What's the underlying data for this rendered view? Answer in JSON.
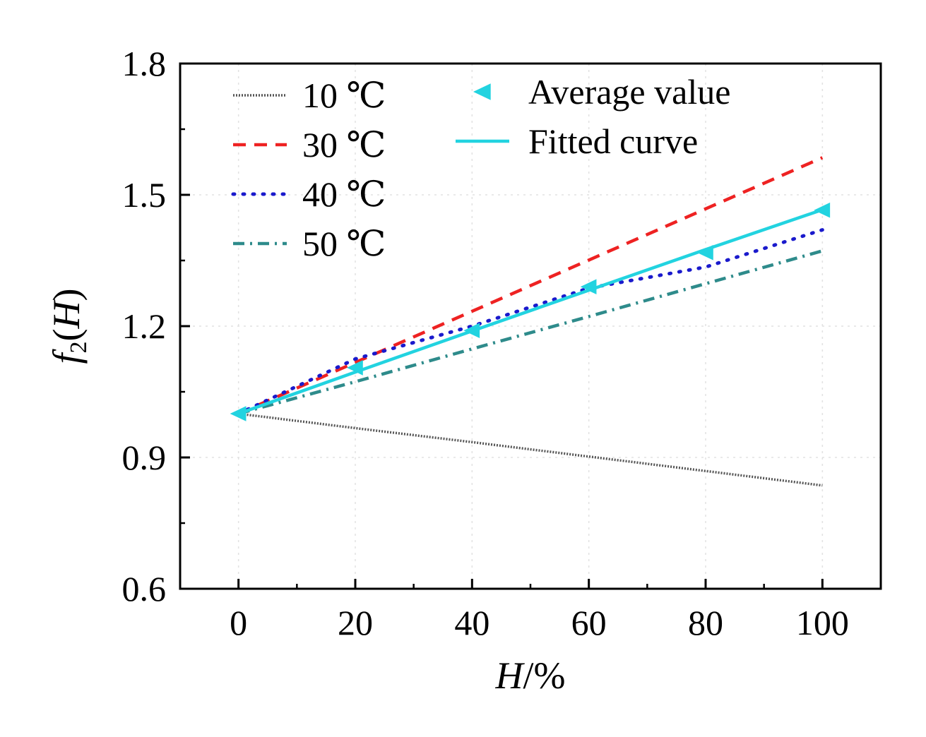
{
  "chart_data": {
    "type": "line",
    "title": "",
    "xlabel": "H/%",
    "ylabel": "f2(H)",
    "xlim": [
      -10,
      110
    ],
    "ylim": [
      0.6,
      1.8
    ],
    "xticks": [
      "0",
      "20",
      "40",
      "60",
      "80",
      "100"
    ],
    "yticks": [
      "0.6",
      "0.9",
      "1.2",
      "1.5",
      "1.8"
    ],
    "grid": true,
    "legend_placement": "top",
    "series": [
      {
        "name": "10 ℃",
        "style": "dotted-dense",
        "color": "#555555",
        "x": [
          0,
          20,
          40,
          60,
          80,
          100
        ],
        "values": [
          1.0,
          0.967,
          0.935,
          0.902,
          0.869,
          0.836
        ]
      },
      {
        "name": "30 ℃",
        "style": "dashed",
        "color": "#ee2222",
        "x": [
          0,
          20,
          40,
          60,
          80,
          100
        ],
        "values": [
          1.0,
          1.117,
          1.234,
          1.351,
          1.468,
          1.585
        ]
      },
      {
        "name": "40 ℃",
        "style": "dotted",
        "color": "#1a1acc",
        "x": [
          0,
          20,
          40,
          60,
          80,
          100
        ],
        "values": [
          1.0,
          1.125,
          1.2,
          1.287,
          1.335,
          1.42
        ]
      },
      {
        "name": "50 ℃",
        "style": "dash-dot",
        "color": "#2e8b8b",
        "x": [
          0,
          20,
          40,
          60,
          80,
          100
        ],
        "values": [
          1.0,
          1.073,
          1.148,
          1.222,
          1.297,
          1.372
        ]
      },
      {
        "name": "Average value",
        "style": "marker",
        "color": "#22d3e0",
        "x": [
          0,
          20,
          40,
          60,
          80,
          100
        ],
        "values": [
          1.0,
          1.105,
          1.19,
          1.29,
          1.368,
          1.465
        ]
      },
      {
        "name": "Fitted curve",
        "style": "solid",
        "color": "#22d3e0",
        "x": [
          0,
          20,
          40,
          60,
          80,
          100
        ],
        "values": [
          1.0,
          1.095,
          1.189,
          1.282,
          1.375,
          1.466
        ]
      }
    ]
  }
}
